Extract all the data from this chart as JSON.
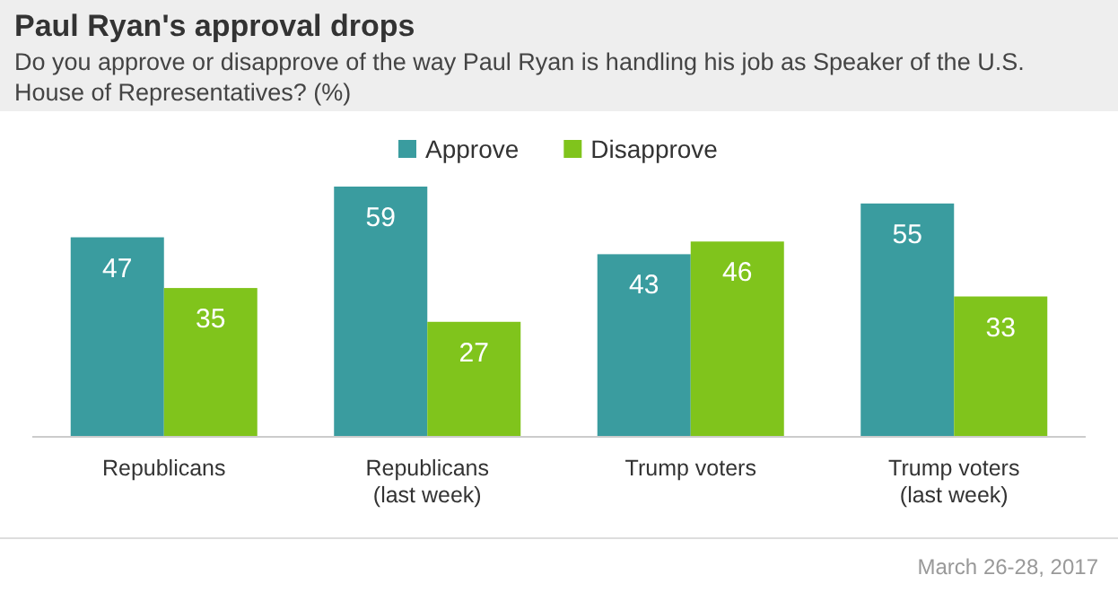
{
  "chart_data": {
    "type": "bar",
    "title": "Paul Ryan's approval drops",
    "subtitle": "Do you approve or disapprove of the way Paul Ryan is handling his job as Speaker of the U.S. House of Representatives? (%)",
    "categories": [
      "Republicans",
      "Republicans (last week)",
      "Trump voters",
      "Trump voters (last week)"
    ],
    "series": [
      {
        "name": "Approve",
        "color": "#3a9c9f",
        "values": [
          47,
          59,
          43,
          55
        ]
      },
      {
        "name": "Disapprove",
        "color": "#80c41c",
        "values": [
          35,
          27,
          46,
          33
        ]
      }
    ],
    "data_labels": true,
    "legend": "top",
    "annotations": [
      "March 26-28, 2017"
    ]
  }
}
